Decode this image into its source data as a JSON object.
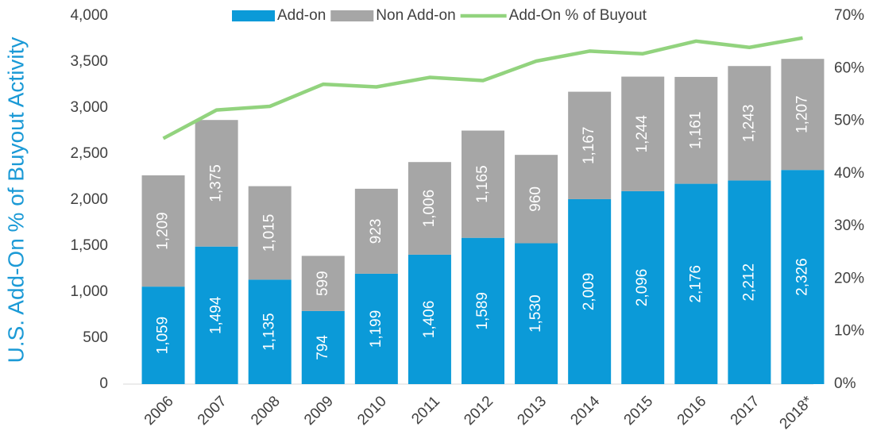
{
  "chart_data": {
    "type": "bar",
    "y_label": "U.S. Add-On % of Buyout Activity",
    "categories": [
      "2006",
      "2007",
      "2008",
      "2009",
      "2010",
      "2011",
      "2012",
      "2013",
      "2014",
      "2015",
      "2016",
      "2017",
      "2018*"
    ],
    "stacked": true,
    "series": [
      {
        "name": "Add-on",
        "type": "bar",
        "color": "#0b9ad8",
        "values": [
          1059,
          1494,
          1135,
          794,
          1199,
          1406,
          1589,
          1530,
          2009,
          2096,
          2176,
          2212,
          2326
        ],
        "value_labels": [
          "1,059",
          "1,494",
          "1,135",
          "794",
          "1,199",
          "1,406",
          "1,589",
          "1,530",
          "2,009",
          "2,096",
          "2,176",
          "2,212",
          "2,326"
        ]
      },
      {
        "name": "Non Add-on",
        "type": "bar",
        "color": "#a6a6a6",
        "values": [
          1209,
          1375,
          1015,
          599,
          923,
          1006,
          1165,
          960,
          1167,
          1244,
          1161,
          1243,
          1207
        ],
        "value_labels": [
          "1,209",
          "1,375",
          "1,015",
          "599",
          "923",
          "1,006",
          "1,165",
          "960",
          "1,167",
          "1,244",
          "1,161",
          "1,243",
          "1,207"
        ]
      },
      {
        "name": "Add-On % of Buyout",
        "type": "line",
        "color": "#92d37e",
        "axis": "y2",
        "values": [
          46.7,
          52.1,
          52.8,
          57.0,
          56.5,
          58.3,
          57.7,
          61.4,
          63.3,
          62.8,
          65.2,
          64.0,
          65.8
        ]
      }
    ],
    "ylim": [
      0,
      4000
    ],
    "yticks": [
      0,
      500,
      {
        "value": 1000,
        "label": "1,000"
      },
      {
        "value": 1500,
        "label": "1,500"
      },
      {
        "value": 2000,
        "label": "2,000"
      },
      {
        "value": 2500,
        "label": "2,500"
      },
      {
        "value": 3000,
        "label": "3,000"
      },
      {
        "value": 3500,
        "label": "3,500"
      },
      {
        "value": 4000,
        "label": "4,000"
      }
    ],
    "y2lim": [
      0,
      70
    ],
    "y2ticks": [
      {
        "value": 0,
        "label": "0%"
      },
      {
        "value": 10,
        "label": "10%"
      },
      {
        "value": 20,
        "label": "20%"
      },
      {
        "value": 30,
        "label": "30%"
      },
      {
        "value": 40,
        "label": "40%"
      },
      {
        "value": 50,
        "label": "50%"
      },
      {
        "value": 60,
        "label": "60%"
      },
      {
        "value": 70,
        "label": "70%"
      }
    ],
    "grid": false,
    "legend": "top"
  }
}
